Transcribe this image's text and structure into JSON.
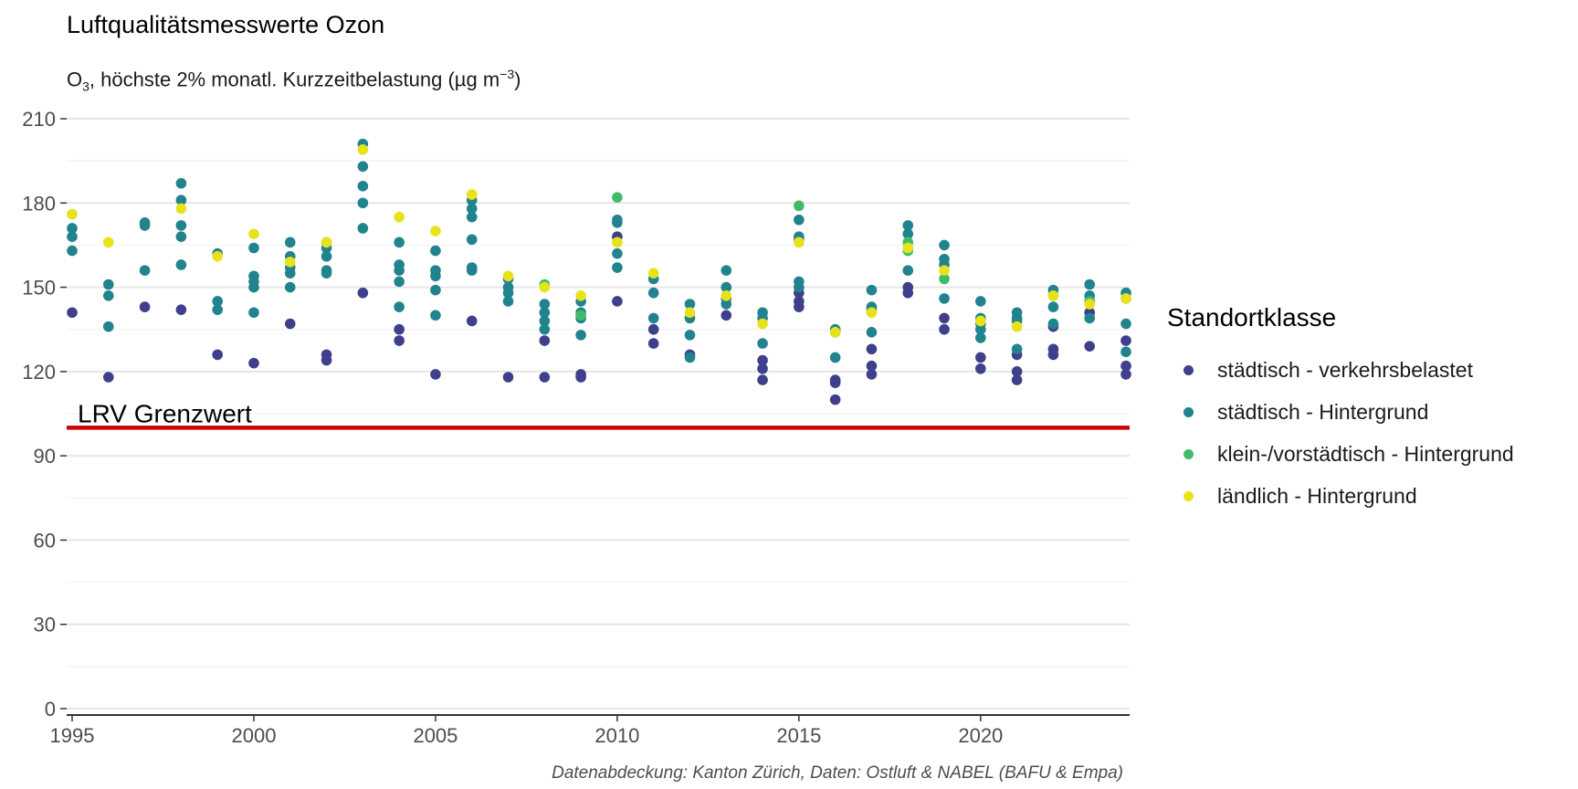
{
  "chart_data": {
    "type": "scatter",
    "title": "Luftqualitätsmesswerte Ozon",
    "subtitle": {
      "pre": "O",
      "sub": "3",
      "mid": ", höchste 2% monatl. Kurzzeitbelastung (µg m",
      "sup": "−3",
      "post": ")"
    },
    "xlabel": "",
    "ylabel": "",
    "xlim": [
      1995,
      2024
    ],
    "ylim": [
      0,
      210
    ],
    "xticks": [
      1995,
      2000,
      2005,
      2010,
      2015,
      2020
    ],
    "yticks": [
      0,
      30,
      60,
      90,
      120,
      150,
      180,
      210
    ],
    "grid": true,
    "legend": {
      "title": "Standortklasse",
      "position": "right"
    },
    "caption": "Datenabdeckung: Kanton Zürich, Daten: Ostluft & NABEL (BAFU & Empa)",
    "reference_line": {
      "label": "LRV Grenzwert",
      "value": 100,
      "color": "#cc0000"
    },
    "series": [
      {
        "name": "städtisch - verkehrsbelastet",
        "color": "#3f3f8c",
        "points": [
          [
            1995,
            141
          ],
          [
            1996,
            118
          ],
          [
            1997,
            143
          ],
          [
            1998,
            142
          ],
          [
            1999,
            126
          ],
          [
            2000,
            123
          ],
          [
            2001,
            137
          ],
          [
            2002,
            126
          ],
          [
            2002,
            124
          ],
          [
            2003,
            148
          ],
          [
            2004,
            135
          ],
          [
            2004,
            131
          ],
          [
            2005,
            119
          ],
          [
            2006,
            138
          ],
          [
            2007,
            118
          ],
          [
            2008,
            131
          ],
          [
            2008,
            118
          ],
          [
            2009,
            119
          ],
          [
            2009,
            118
          ],
          [
            2010,
            168
          ],
          [
            2010,
            145
          ],
          [
            2011,
            135
          ],
          [
            2011,
            130
          ],
          [
            2012,
            126
          ],
          [
            2013,
            140
          ],
          [
            2014,
            124
          ],
          [
            2014,
            121
          ],
          [
            2014,
            117
          ],
          [
            2015,
            148
          ],
          [
            2015,
            145
          ],
          [
            2015,
            143
          ],
          [
            2016,
            117
          ],
          [
            2016,
            116
          ],
          [
            2016,
            110
          ],
          [
            2017,
            128
          ],
          [
            2017,
            122
          ],
          [
            2017,
            119
          ],
          [
            2018,
            150
          ],
          [
            2018,
            148
          ],
          [
            2019,
            139
          ],
          [
            2019,
            135
          ],
          [
            2020,
            125
          ],
          [
            2020,
            121
          ],
          [
            2021,
            126
          ],
          [
            2021,
            120
          ],
          [
            2021,
            117
          ],
          [
            2022,
            136
          ],
          [
            2022,
            128
          ],
          [
            2022,
            126
          ],
          [
            2023,
            141
          ],
          [
            2023,
            129
          ],
          [
            2024,
            131
          ],
          [
            2024,
            122
          ],
          [
            2024,
            119
          ]
        ]
      },
      {
        "name": "städtisch - Hintergrund",
        "color": "#21838e",
        "points": [
          [
            1995,
            171
          ],
          [
            1995,
            168
          ],
          [
            1995,
            163
          ],
          [
            1996,
            151
          ],
          [
            1996,
            147
          ],
          [
            1996,
            136
          ],
          [
            1997,
            173
          ],
          [
            1997,
            172
          ],
          [
            1997,
            156
          ],
          [
            1998,
            187
          ],
          [
            1998,
            181
          ],
          [
            1998,
            172
          ],
          [
            1998,
            168
          ],
          [
            1998,
            158
          ],
          [
            1999,
            162
          ],
          [
            1999,
            145
          ],
          [
            1999,
            142
          ],
          [
            2000,
            164
          ],
          [
            2000,
            154
          ],
          [
            2000,
            152
          ],
          [
            2000,
            150
          ],
          [
            2000,
            141
          ],
          [
            2001,
            166
          ],
          [
            2001,
            161
          ],
          [
            2001,
            157
          ],
          [
            2001,
            155
          ],
          [
            2001,
            150
          ],
          [
            2002,
            166
          ],
          [
            2002,
            164
          ],
          [
            2002,
            161
          ],
          [
            2002,
            156
          ],
          [
            2002,
            155
          ],
          [
            2003,
            201
          ],
          [
            2003,
            193
          ],
          [
            2003,
            186
          ],
          [
            2003,
            180
          ],
          [
            2003,
            171
          ],
          [
            2004,
            166
          ],
          [
            2004,
            158
          ],
          [
            2004,
            156
          ],
          [
            2004,
            152
          ],
          [
            2004,
            143
          ],
          [
            2005,
            163
          ],
          [
            2005,
            156
          ],
          [
            2005,
            154
          ],
          [
            2005,
            149
          ],
          [
            2005,
            140
          ],
          [
            2006,
            181
          ],
          [
            2006,
            178
          ],
          [
            2006,
            175
          ],
          [
            2006,
            167
          ],
          [
            2006,
            157
          ],
          [
            2006,
            156
          ],
          [
            2007,
            153
          ],
          [
            2007,
            150
          ],
          [
            2007,
            148
          ],
          [
            2007,
            145
          ],
          [
            2008,
            144
          ],
          [
            2008,
            141
          ],
          [
            2008,
            138
          ],
          [
            2008,
            135
          ],
          [
            2009,
            145
          ],
          [
            2009,
            141
          ],
          [
            2009,
            139
          ],
          [
            2009,
            133
          ],
          [
            2010,
            174
          ],
          [
            2010,
            173
          ],
          [
            2010,
            162
          ],
          [
            2010,
            157
          ],
          [
            2011,
            153
          ],
          [
            2011,
            148
          ],
          [
            2011,
            139
          ],
          [
            2012,
            144
          ],
          [
            2012,
            139
          ],
          [
            2012,
            133
          ],
          [
            2012,
            125
          ],
          [
            2013,
            156
          ],
          [
            2013,
            150
          ],
          [
            2013,
            146
          ],
          [
            2013,
            144
          ],
          [
            2014,
            141
          ],
          [
            2014,
            139
          ],
          [
            2014,
            130
          ],
          [
            2015,
            174
          ],
          [
            2015,
            168
          ],
          [
            2015,
            167
          ],
          [
            2015,
            152
          ],
          [
            2015,
            150
          ],
          [
            2016,
            135
          ],
          [
            2016,
            134
          ],
          [
            2016,
            125
          ],
          [
            2017,
            149
          ],
          [
            2017,
            143
          ],
          [
            2017,
            142
          ],
          [
            2017,
            134
          ],
          [
            2018,
            172
          ],
          [
            2018,
            169
          ],
          [
            2018,
            156
          ],
          [
            2019,
            165
          ],
          [
            2019,
            160
          ],
          [
            2019,
            158
          ],
          [
            2019,
            146
          ],
          [
            2020,
            145
          ],
          [
            2020,
            139
          ],
          [
            2020,
            137
          ],
          [
            2020,
            135
          ],
          [
            2020,
            132
          ],
          [
            2021,
            141
          ],
          [
            2021,
            139
          ],
          [
            2021,
            138
          ],
          [
            2021,
            128
          ],
          [
            2022,
            149
          ],
          [
            2022,
            147
          ],
          [
            2022,
            143
          ],
          [
            2022,
            137
          ],
          [
            2023,
            151
          ],
          [
            2023,
            147
          ],
          [
            2023,
            145
          ],
          [
            2023,
            139
          ],
          [
            2024,
            148
          ],
          [
            2024,
            146
          ],
          [
            2024,
            137
          ],
          [
            2024,
            127
          ]
        ]
      },
      {
        "name": "klein-/vorstädtisch - Hintergrund",
        "color": "#42bb68",
        "points": [
          [
            2008,
            151
          ],
          [
            2009,
            140
          ],
          [
            2010,
            182
          ],
          [
            2015,
            179
          ],
          [
            2018,
            166
          ],
          [
            2018,
            163
          ],
          [
            2019,
            153
          ],
          [
            2023,
            145
          ]
        ]
      },
      {
        "name": "ländlich - Hintergrund",
        "color": "#e8e21a",
        "points": [
          [
            1995,
            176
          ],
          [
            1996,
            166
          ],
          [
            1998,
            178
          ],
          [
            1999,
            161
          ],
          [
            2000,
            169
          ],
          [
            2001,
            159
          ],
          [
            2002,
            166
          ],
          [
            2003,
            199
          ],
          [
            2004,
            175
          ],
          [
            2005,
            170
          ],
          [
            2006,
            183
          ],
          [
            2007,
            154
          ],
          [
            2008,
            150
          ],
          [
            2009,
            147
          ],
          [
            2010,
            166
          ],
          [
            2011,
            155
          ],
          [
            2012,
            141
          ],
          [
            2013,
            147
          ],
          [
            2014,
            137
          ],
          [
            2015,
            166
          ],
          [
            2016,
            134
          ],
          [
            2017,
            141
          ],
          [
            2018,
            164
          ],
          [
            2019,
            156
          ],
          [
            2020,
            138
          ],
          [
            2021,
            136
          ],
          [
            2022,
            147
          ],
          [
            2023,
            144
          ],
          [
            2024,
            146
          ]
        ]
      }
    ]
  }
}
